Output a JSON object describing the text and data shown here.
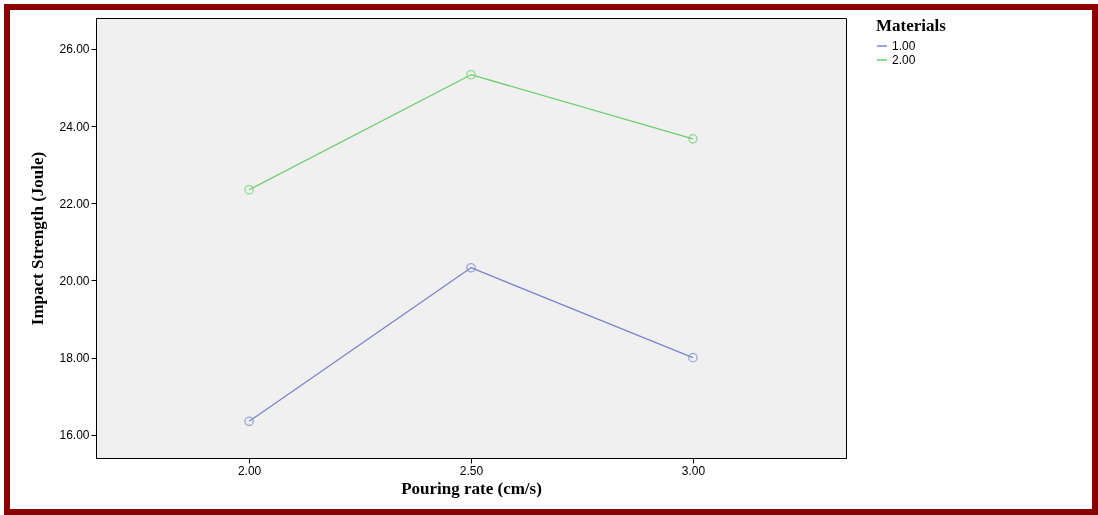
{
  "chart_data": {
    "type": "line",
    "xlabel": "Pouring rate (cm/s)",
    "ylabel": "Impact Strength (Joule)",
    "legend_title": "Materials",
    "categories": [
      "2.00",
      "2.50",
      "3.00"
    ],
    "series": [
      {
        "name": "1.00",
        "color": "#7c84cf",
        "values": [
          16.35,
          20.33,
          18.0
        ]
      },
      {
        "name": "2.00",
        "color": "#6ccf6c",
        "values": [
          22.35,
          25.33,
          23.67
        ]
      }
    ],
    "ylim": [
      15.4,
      26.8
    ],
    "yticks": [
      {
        "value": 16,
        "label": "16.00"
      },
      {
        "value": 18,
        "label": "18.00"
      },
      {
        "value": 20,
        "label": "20.00"
      },
      {
        "value": 22,
        "label": "22.00"
      },
      {
        "value": 24,
        "label": "24.00"
      },
      {
        "value": 26,
        "label": "26.00"
      }
    ],
    "grid": false,
    "legend": "top right",
    "marker": "circle",
    "line_style": "solid"
  }
}
